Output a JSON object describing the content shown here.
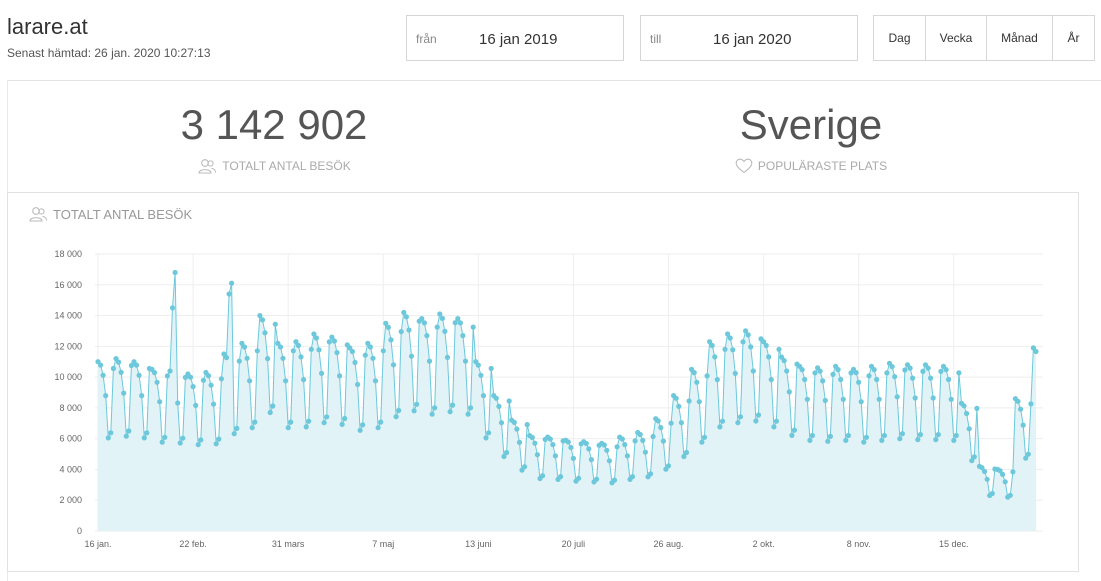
{
  "header": {
    "site_title": "larare.at",
    "last_fetched": "Senast hämtad: 26 jan. 2020 10:27:13"
  },
  "date_range": {
    "from_label": "från",
    "from_value": "16 jan 2019",
    "to_label": "till",
    "to_value": "16 jan 2020"
  },
  "granularity": {
    "options": [
      "Dag",
      "Vecka",
      "Månad",
      "År"
    ]
  },
  "summary": {
    "total_visits": "3 142 902",
    "total_visits_label": "TOTALT ANTAL BESÖK",
    "popular_place": "Sverige",
    "popular_place_label": "POPULÄRASTE PLATS"
  },
  "icons": {
    "visits": "users-icon",
    "popular": "heart-icon"
  },
  "colors": {
    "line": "#6cc8da",
    "fill": "#e2f3f8",
    "grid": "#eeeeee"
  },
  "chart_data": {
    "type": "area",
    "title": "TOTALT ANTAL BESÖK",
    "ylim": [
      0,
      18000
    ],
    "yticks": [
      "0",
      "2 000",
      "4 000",
      "6 000",
      "8 000",
      "10 000",
      "12 000",
      "14 000",
      "16 000",
      "18 000"
    ],
    "xtick_labels": [
      "16 jan.",
      "22 feb.",
      "31 mars",
      "7 maj",
      "13 juni",
      "20 juli",
      "26 aug.",
      "2 okt.",
      "8 nov.",
      "15 dec."
    ],
    "grid": true,
    "weekly_profile": [
      1.0,
      0.98,
      0.92,
      0.8,
      0.55,
      0.58,
      0.96
    ],
    "weekly_baseline": [
      11000,
      11200,
      11000,
      10500,
      10400,
      10200,
      10300,
      11500,
      12200,
      14000,
      12200,
      12300,
      12800,
      12600,
      11900,
      12200,
      13500,
      14200,
      13800,
      14100,
      13800,
      11000,
      8800,
      7200,
      6200,
      6100,
      5900,
      5800,
      5700,
      6100,
      6400,
      7300,
      8800,
      10500,
      12300,
      12800,
      13000,
      12300,
      11300,
      10700,
      10600,
      10700,
      10500,
      10700,
      10900,
      10800,
      10800,
      10700,
      8300,
      4200,
      4000,
      8600,
      11900
    ],
    "peaks": [
      {
        "day": 29,
        "value": 14500
      },
      {
        "day": 30,
        "value": 16800
      },
      {
        "day": 51,
        "value": 15400
      },
      {
        "day": 52,
        "value": 16100
      }
    ],
    "points_note_hidden": false
  }
}
